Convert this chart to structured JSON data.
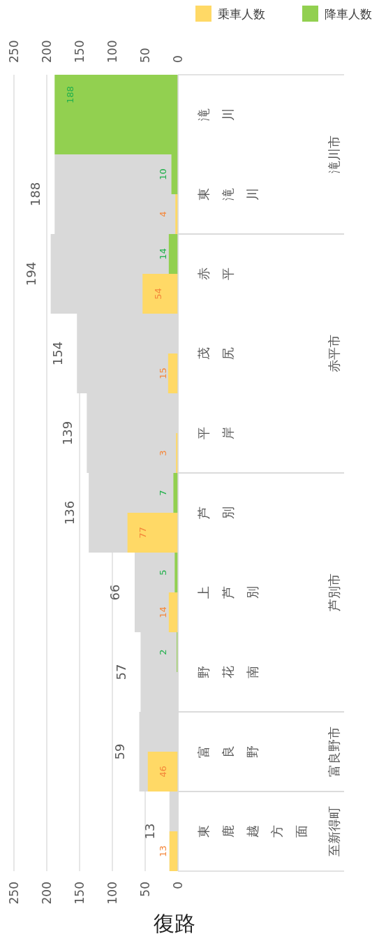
{
  "chart_data": {
    "type": "bar",
    "orientation": "horizontal",
    "title": "復路",
    "categories": [
      "滝川",
      "東滝川",
      "赤平",
      "茂尻",
      "平岸",
      "芦別",
      "上芦別",
      "野花南",
      "富良野",
      "東鹿越方面"
    ],
    "series": [
      {
        "color": "#d9d9d9",
        "values": [
          null,
          188,
          194,
          154,
          139,
          136,
          66,
          57,
          59,
          13
        ]
      },
      {
        "name": "乗車人数",
        "color": "#ffd966",
        "values": [
          null,
          4,
          54,
          15,
          3,
          77,
          14,
          null,
          46,
          13
        ]
      },
      {
        "name": "降車人数",
        "color": "#92d050",
        "values": [
          188,
          10,
          14,
          null,
          null,
          7,
          5,
          2,
          null,
          null
        ]
      }
    ],
    "xlim": [
      250,
      0
    ],
    "xticks": [
      250,
      200,
      150,
      100,
      50,
      0
    ],
    "x2lim": [
      250,
      0
    ],
    "x2ticks": [
      250,
      200,
      150,
      100,
      50,
      0
    ],
    "grid": "x",
    "legend": "top right",
    "data_labels": true,
    "annotations": [
      "滝川市",
      "赤平市",
      "芦別市",
      "富良野市",
      "至新得町"
    ]
  }
}
